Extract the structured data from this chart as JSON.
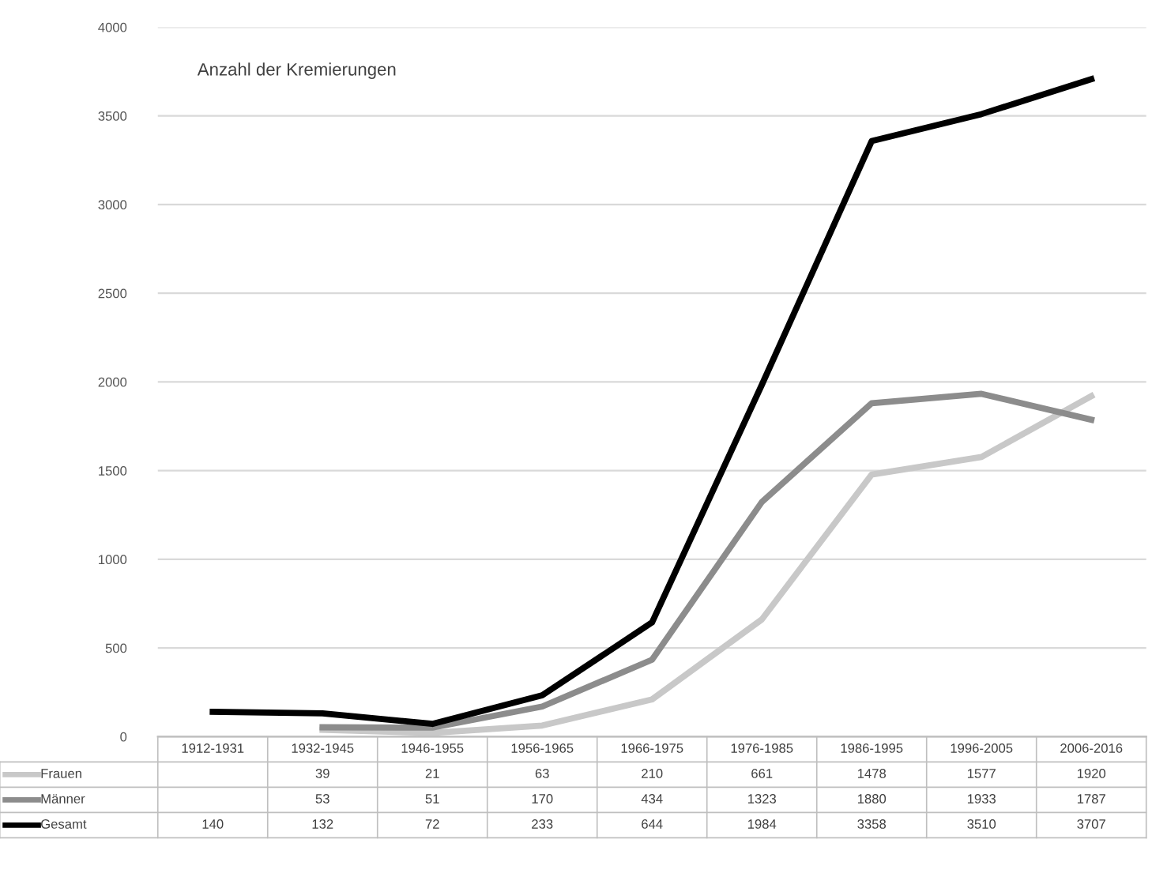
{
  "chart_data": {
    "type": "line",
    "title": "Anzahl der Kremierungen",
    "categories": [
      "1912-1931",
      "1932-1945",
      "1946-1955",
      "1956-1965",
      "1966-1975",
      "1976-1985",
      "1986-1995",
      "1996-2005",
      "2006-2016"
    ],
    "series": [
      {
        "name": "Frauen",
        "color": "#c8c8c8",
        "values": [
          null,
          39,
          21,
          63,
          210,
          661,
          1478,
          1577,
          1920
        ]
      },
      {
        "name": "Männer",
        "color": "#8c8c8c",
        "values": [
          null,
          53,
          51,
          170,
          434,
          1323,
          1880,
          1933,
          1787
        ]
      },
      {
        "name": "Gesamt",
        "color": "#000000",
        "values": [
          140,
          132,
          72,
          233,
          644,
          1984,
          3358,
          3510,
          3707
        ]
      }
    ],
    "ylim": [
      0,
      4000
    ],
    "yticks": [
      0,
      500,
      1000,
      1500,
      2000,
      2500,
      3000,
      3500,
      4000
    ],
    "grid": "y",
    "data_labels": true,
    "legend": "bottom",
    "marker": "none",
    "line_style": "solid"
  }
}
